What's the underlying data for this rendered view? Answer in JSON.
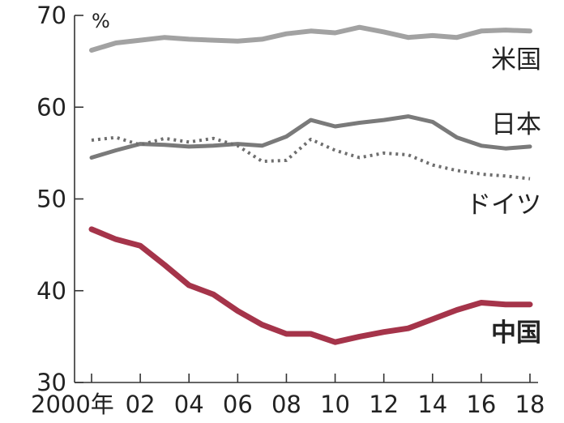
{
  "chart_data": {
    "type": "line",
    "unit": "%",
    "ylim": [
      30,
      70
    ],
    "yticks": [
      {
        "value": 30,
        "label": "30"
      },
      {
        "value": 40,
        "label": "40"
      },
      {
        "value": 50,
        "label": "50"
      },
      {
        "value": 60,
        "label": "60"
      },
      {
        "value": 70,
        "label": "70"
      }
    ],
    "xlim": [
      2000,
      2018
    ],
    "xticks": [
      {
        "value": 2000,
        "label": "2000年"
      },
      {
        "value": 2002,
        "label": "02"
      },
      {
        "value": 2004,
        "label": "04"
      },
      {
        "value": 2006,
        "label": "06"
      },
      {
        "value": 2008,
        "label": "08"
      },
      {
        "value": 2010,
        "label": "10"
      },
      {
        "value": 2012,
        "label": "12"
      },
      {
        "value": 2014,
        "label": "14"
      },
      {
        "value": 2016,
        "label": "16"
      },
      {
        "value": 2018,
        "label": "18"
      }
    ],
    "x": [
      2000,
      2001,
      2002,
      2003,
      2004,
      2005,
      2006,
      2007,
      2008,
      2009,
      2010,
      2011,
      2012,
      2013,
      2014,
      2015,
      2016,
      2017,
      2018
    ],
    "series": [
      {
        "name": "米国",
        "color": "#a2a2a2",
        "dash": "solid",
        "values": [
          66.2,
          67.0,
          67.3,
          67.6,
          67.4,
          67.3,
          67.2,
          67.4,
          68.0,
          68.3,
          68.1,
          68.7,
          68.2,
          67.6,
          67.8,
          67.6,
          68.3,
          68.4,
          68.3
        ]
      },
      {
        "name": "日本",
        "color": "#7a7a7a",
        "dash": "solid",
        "values": [
          54.5,
          55.3,
          56.0,
          55.9,
          55.7,
          55.8,
          56.0,
          55.8,
          56.8,
          58.6,
          57.9,
          58.3,
          58.6,
          59.0,
          58.4,
          56.7,
          55.8,
          55.5,
          55.7
        ]
      },
      {
        "name": "ドイツ",
        "color": "#6e6e6e",
        "dash": "dotted",
        "values": [
          56.4,
          56.7,
          55.9,
          56.6,
          56.2,
          56.6,
          55.8,
          54.1,
          54.2,
          56.5,
          55.3,
          54.5,
          55.0,
          54.8,
          53.7,
          53.1,
          52.7,
          52.5,
          52.2
        ]
      },
      {
        "name": "中国",
        "color": "#a5344a",
        "dash": "solid",
        "values": [
          46.7,
          45.6,
          44.9,
          42.8,
          40.6,
          39.6,
          37.8,
          36.3,
          35.3,
          35.3,
          34.4,
          35.0,
          35.5,
          35.9,
          36.9,
          37.9,
          38.7,
          38.5,
          38.5
        ]
      }
    ]
  }
}
